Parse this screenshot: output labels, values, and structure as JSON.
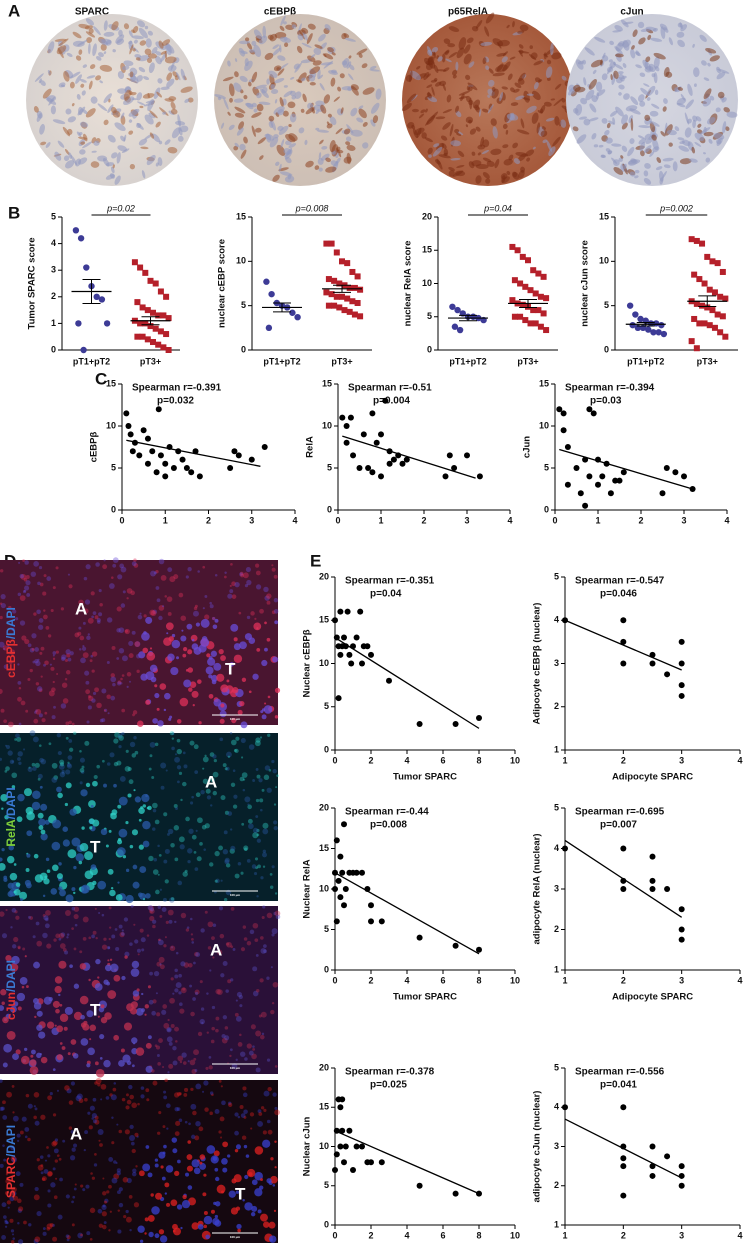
{
  "panel_labels": [
    "A",
    "B",
    "C",
    "D",
    "E"
  ],
  "ihc_titles": [
    "SPARC",
    "cEBPβ",
    "p65RelA",
    "cJun"
  ],
  "fluorescence_panels": [
    {
      "label": [
        "cEBPβ",
        "/",
        "DAPI"
      ],
      "regions": [
        "A",
        "T"
      ],
      "scale_bar": "100 μm"
    },
    {
      "label": [
        "RelA",
        "/",
        "DAPI"
      ],
      "regions": [
        "A",
        "T"
      ],
      "scale_bar": "100 μm"
    },
    {
      "label": [
        "cJun",
        "/",
        "DAPI"
      ],
      "regions": [
        "A",
        "T"
      ],
      "scale_bar": "100 μm"
    },
    {
      "label": [
        "SPARC",
        "/",
        "DAPI"
      ],
      "regions": [
        "A",
        "T"
      ],
      "scale_bar": "100 μm"
    }
  ],
  "chart_data": [
    {
      "type": "dot",
      "ylabel": "Tumor SPARC score",
      "annotation": "p=0.02",
      "categories": [
        "pT1+pT2",
        "pT3+"
      ],
      "groups": [
        {
          "color": "#3d3b96",
          "marker": "circle",
          "values": [
            4.5,
            4.2,
            3.1,
            2.4,
            2.0,
            1.9,
            1.0,
            1.0,
            0
          ],
          "mean": 2.2,
          "sem": 0.45
        },
        {
          "color": "#b5202a",
          "marker": "square",
          "values": [
            3.3,
            3.1,
            2.9,
            2.6,
            2.5,
            2.2,
            2.0,
            1.8,
            1.6,
            1.5,
            1.4,
            1.3,
            1.3,
            1.2,
            1.1,
            1.0,
            1.0,
            0.9,
            0.8,
            0.7,
            0.6,
            0.5,
            0.5,
            0.4,
            0.3,
            0.2,
            0.1,
            0
          ],
          "mean": 1.1,
          "sem": 0.15
        }
      ],
      "ylim": [
        0,
        5
      ],
      "yticks": [
        0,
        1,
        2,
        3,
        4,
        5
      ]
    },
    {
      "type": "dot",
      "ylabel": "nuclear cEBP score",
      "annotation": "p=0.008",
      "categories": [
        "pT1+pT2",
        "pT3+"
      ],
      "groups": [
        {
          "color": "#3d3b96",
          "marker": "circle",
          "values": [
            7.7,
            6.3,
            5.3,
            5.0,
            4.8,
            4.2,
            3.7,
            2.5
          ],
          "mean": 4.8,
          "sem": 0.5
        },
        {
          "color": "#b5202a",
          "marker": "square",
          "values": [
            12,
            12,
            11,
            10,
            9.8,
            8.8,
            8.3,
            8,
            7.8,
            7.5,
            7.3,
            7,
            7,
            6.8,
            6.5,
            6.3,
            6,
            6,
            5.8,
            5.5,
            5.3,
            5,
            5,
            4.8,
            4.5,
            4.3,
            4,
            3.8
          ],
          "mean": 6.9,
          "sem": 0.4
        }
      ],
      "ylim": [
        0,
        15
      ],
      "yticks": [
        0,
        5,
        10,
        15
      ]
    },
    {
      "type": "dot",
      "ylabel": "nuclear RelA score",
      "annotation": "p=0.04",
      "categories": [
        "pT1+pT2",
        "pT3+"
      ],
      "groups": [
        {
          "color": "#3d3b96",
          "marker": "circle",
          "values": [
            6.5,
            6,
            5.5,
            5,
            5,
            4.8,
            4.5,
            3.5,
            3
          ],
          "mean": 4.8,
          "sem": 0.4
        },
        {
          "color": "#b5202a",
          "marker": "square",
          "values": [
            15.5,
            15,
            14,
            13.5,
            12,
            11.5,
            11,
            10.5,
            10,
            9.5,
            9,
            8.5,
            8,
            7.8,
            7.5,
            7,
            6.8,
            6.5,
            6,
            6,
            5.5,
            5,
            5,
            4.5,
            4,
            4,
            3.5,
            3
          ],
          "mean": 7,
          "sem": 0.6
        }
      ],
      "ylim": [
        0,
        20
      ],
      "yticks": [
        0,
        5,
        10,
        15,
        20
      ]
    },
    {
      "type": "dot",
      "ylabel": "nuclear cJun score",
      "annotation": "p=0.002",
      "categories": [
        "pT1+pT2",
        "pT3+"
      ],
      "groups": [
        {
          "color": "#3d3b96",
          "marker": "circle",
          "values": [
            5,
            4,
            3.5,
            3.3,
            3,
            3,
            2.8,
            2.8,
            2.5,
            2.5,
            2.3,
            2,
            2,
            1.8
          ],
          "mean": 2.9,
          "sem": 0.2
        },
        {
          "color": "#b5202a",
          "marker": "square",
          "values": [
            12.5,
            12.3,
            12,
            10.5,
            10,
            9.8,
            8.8,
            8.5,
            8,
            7.5,
            6.8,
            6.5,
            6,
            5.8,
            5.5,
            5.2,
            5,
            4.8,
            4.5,
            4,
            3.8,
            3.5,
            3,
            3,
            2.8,
            2.5,
            2,
            1.5,
            1,
            0.2
          ],
          "mean": 5.5,
          "sem": 0.6
        }
      ],
      "ylim": [
        0,
        15
      ],
      "yticks": [
        0,
        5,
        10,
        15
      ]
    },
    {
      "type": "scatter",
      "ylabel": "cEBPβ",
      "annotations": [
        "Spearman r=-0.391",
        "p=0.032"
      ],
      "color": "#000000",
      "x": [
        0.1,
        0.15,
        0.2,
        0.3,
        0.25,
        0.4,
        0.5,
        0.6,
        0.7,
        0.8,
        0.85,
        0.9,
        1.0,
        1.1,
        1.2,
        1.3,
        1.4,
        1.5,
        1.6,
        1.7,
        1.8,
        2.5,
        2.6,
        2.7,
        3.0,
        3.3,
        1.0,
        0.6
      ],
      "y": [
        11.5,
        10,
        9,
        8,
        7,
        6.5,
        9.5,
        5.5,
        7,
        4.5,
        12,
        6.5,
        4,
        7.5,
        5,
        7,
        6,
        5,
        4.5,
        7,
        4,
        5,
        7,
        6.5,
        6,
        7.5,
        5.5,
        8.5
      ],
      "fit": {
        "x": [
          0.1,
          3.2
        ],
        "y": [
          8.3,
          5.2
        ]
      },
      "xlim": [
        0,
        4
      ],
      "xticks": [
        0,
        1,
        2,
        3,
        4
      ],
      "ylim": [
        0,
        15
      ],
      "yticks": [
        0,
        5,
        10,
        15
      ]
    },
    {
      "type": "scatter",
      "ylabel": "RelA",
      "annotations": [
        "Spearman r=-0.51",
        "p=0.004"
      ],
      "color": "#000000",
      "x": [
        0.1,
        0.2,
        0.3,
        0.2,
        0.35,
        0.6,
        0.7,
        0.8,
        0.8,
        0.9,
        1.0,
        1.0,
        1.1,
        1.2,
        1.3,
        1.4,
        1.5,
        1.6,
        2.5,
        2.6,
        2.7,
        3.0,
        3.3,
        0.5,
        1.2
      ],
      "y": [
        11,
        10,
        11,
        8,
        6.5,
        9,
        5,
        4.5,
        11.5,
        8,
        4,
        9,
        13,
        7,
        6,
        6.5,
        5.5,
        6,
        4,
        6.5,
        5,
        6.5,
        4,
        5,
        5.5
      ],
      "fit": {
        "x": [
          0.1,
          3.2
        ],
        "y": [
          8.8,
          3.8
        ]
      },
      "xlim": [
        0,
        4
      ],
      "xticks": [
        0,
        1,
        2,
        3,
        4
      ],
      "ylim": [
        0,
        15
      ],
      "yticks": [
        0,
        5,
        10,
        15
      ]
    },
    {
      "type": "scatter",
      "ylabel": "cJun",
      "annotations": [
        "Spearman r=-0.394",
        "p=0.03"
      ],
      "color": "#000000",
      "x": [
        0.1,
        0.2,
        0.2,
        0.3,
        0.3,
        0.5,
        0.6,
        0.7,
        0.7,
        0.8,
        0.8,
        0.9,
        1.0,
        1.0,
        1.1,
        1.2,
        1.3,
        1.4,
        1.5,
        1.6,
        2.5,
        2.6,
        2.8,
        3.0,
        3.2
      ],
      "y": [
        12,
        11.5,
        9.5,
        7.5,
        3,
        5,
        2,
        0.5,
        6,
        4,
        12,
        11.5,
        6,
        3,
        4,
        5.5,
        2,
        3.5,
        3.5,
        4.5,
        2,
        5,
        4.5,
        4,
        2.5
      ],
      "fit": {
        "x": [
          0.1,
          3.2
        ],
        "y": [
          7.2,
          2.5
        ]
      },
      "xlim": [
        0,
        4
      ],
      "xticks": [
        0,
        1,
        2,
        3,
        4
      ],
      "ylim": [
        0,
        15
      ],
      "yticks": [
        0,
        5,
        10,
        15
      ]
    },
    {
      "type": "scatter",
      "ylabel": "Nuclear cEBPβ",
      "xlabel": "Tumor SPARC",
      "annotations": [
        "Spearman r=-0.351",
        "p=0.04"
      ],
      "color": "#000000",
      "x": [
        0,
        0.1,
        0.2,
        0.3,
        0.3,
        0.4,
        0.5,
        0.6,
        0.7,
        0.8,
        0.9,
        1.0,
        1.2,
        1.4,
        1.5,
        1.6,
        1.8,
        2.0,
        0.2,
        3,
        4.7,
        6.7,
        8
      ],
      "y": [
        15,
        13,
        12,
        16,
        11,
        12,
        13,
        12,
        16,
        11,
        10,
        12,
        13,
        16,
        10,
        12,
        12,
        11,
        6,
        8,
        3,
        3,
        3.7
      ],
      "fit": {
        "x": [
          0,
          8
        ],
        "y": [
          13,
          2.5
        ]
      },
      "xlim": [
        0,
        10
      ],
      "xticks": [
        0,
        2,
        4,
        6,
        8,
        10
      ],
      "ylim": [
        0,
        20
      ],
      "yticks": [
        0,
        5,
        10,
        15,
        20
      ]
    },
    {
      "type": "scatter",
      "ylabel": "Adipocyte cEBPβ (nuclear)",
      "xlabel": "Adipocyte SPARC",
      "annotations": [
        "Spearman r=-0.547",
        "p=0.046"
      ],
      "color": "#000000",
      "x": [
        1,
        2,
        2,
        2,
        2.5,
        2.5,
        2.75,
        3,
        3,
        3,
        3
      ],
      "y": [
        4,
        4,
        3.5,
        3,
        3.2,
        3,
        2.75,
        3.5,
        3,
        2.5,
        2.25
      ],
      "fit": {
        "x": [
          1,
          3
        ],
        "y": [
          4,
          2.85
        ]
      },
      "xlim": [
        1,
        4
      ],
      "xticks": [
        1,
        2,
        3,
        4
      ],
      "ylim": [
        1,
        5
      ],
      "yticks": [
        1,
        2,
        3,
        4,
        5
      ]
    },
    {
      "type": "scatter",
      "ylabel": "Nuclear RelA",
      "xlabel": "Tumor SPARC",
      "annotations": [
        "Spearman r=-0.44",
        "p=0.008"
      ],
      "color": "#000000",
      "x": [
        0,
        0.1,
        0.2,
        0.3,
        0.3,
        0.4,
        0.5,
        0.6,
        0.8,
        1.0,
        1.2,
        1.5,
        1.8,
        2.0,
        2.0,
        2.6,
        0.1,
        0,
        4.7,
        6.7,
        8,
        0.5
      ],
      "y": [
        12,
        16,
        11,
        9,
        14,
        12,
        8,
        10,
        12,
        12,
        12,
        12,
        10,
        6,
        8,
        6,
        6,
        10,
        4,
        3,
        2.5,
        18
      ],
      "fit": {
        "x": [
          0,
          8
        ],
        "y": [
          12,
          2
        ]
      },
      "xlim": [
        0,
        10
      ],
      "xticks": [
        0,
        2,
        4,
        6,
        8,
        10
      ],
      "ylim": [
        0,
        20
      ],
      "yticks": [
        0,
        5,
        10,
        15,
        20
      ]
    },
    {
      "type": "scatter",
      "ylabel": "adipocyte RelA (nuclear)",
      "xlabel": "Adipocyte SPARC",
      "annotations": [
        "Spearman r=-0.695",
        "p=0.007"
      ],
      "color": "#000000",
      "x": [
        1,
        2,
        2,
        2,
        2.5,
        2.5,
        2.5,
        2.75,
        3,
        3,
        3
      ],
      "y": [
        4,
        4,
        3.2,
        3,
        3.8,
        3.2,
        3,
        3,
        2.5,
        2,
        1.75
      ],
      "fit": {
        "x": [
          1,
          3
        ],
        "y": [
          4.2,
          2.3
        ]
      },
      "xlim": [
        1,
        4
      ],
      "xticks": [
        1,
        2,
        3,
        4
      ],
      "ylim": [
        1,
        5
      ],
      "yticks": [
        1,
        2,
        3,
        4,
        5
      ]
    },
    {
      "type": "scatter",
      "ylabel": "Nuclear cJun",
      "xlabel": "Tumor SPARC",
      "annotations": [
        "Spearman r=-0.378",
        "p=0.025"
      ],
      "color": "#000000",
      "x": [
        0,
        0.1,
        0.2,
        0.3,
        0.3,
        0.4,
        0.5,
        0.6,
        0.8,
        1.0,
        1.2,
        1.5,
        1.8,
        2.0,
        2.6,
        0.1,
        0.4,
        4.7,
        6.7,
        8
      ],
      "y": [
        7,
        12,
        16,
        15,
        10,
        12,
        8,
        10,
        12,
        7,
        10,
        10,
        8,
        8,
        8,
        9,
        16,
        5,
        4,
        4
      ],
      "fit": {
        "x": [
          0,
          8
        ],
        "y": [
          12,
          4
        ]
      },
      "xlim": [
        0,
        10
      ],
      "xticks": [
        0,
        2,
        4,
        6,
        8,
        10
      ],
      "ylim": [
        0,
        20
      ],
      "yticks": [
        0,
        5,
        10,
        15,
        20
      ]
    },
    {
      "type": "scatter",
      "ylabel": "adipocyte cJun (nuclear)",
      "xlabel": "Adipocyte SPARC",
      "annotations": [
        "Spearman r=-0.556",
        "p=0.041"
      ],
      "color": "#000000",
      "x": [
        1,
        2,
        2,
        2,
        2,
        2,
        2.5,
        2.5,
        2.5,
        2.75,
        3,
        3,
        3
      ],
      "y": [
        4,
        4,
        3,
        2.7,
        2.5,
        1.75,
        3,
        2.5,
        2.25,
        2.75,
        2.5,
        2.25,
        2
      ],
      "fit": {
        "x": [
          1,
          3
        ],
        "y": [
          3.7,
          2.2
        ]
      },
      "xlim": [
        1,
        4
      ],
      "xticks": [
        1,
        2,
        3,
        4
      ],
      "ylim": [
        1,
        5
      ],
      "yticks": [
        1,
        2,
        3,
        4,
        5
      ]
    }
  ]
}
